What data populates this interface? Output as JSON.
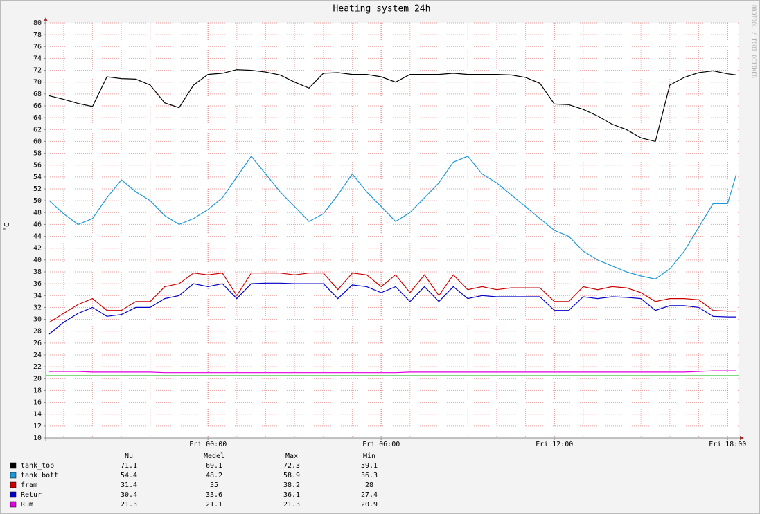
{
  "chart_data": {
    "type": "line",
    "title": "Heating system 24h",
    "y_label": "°C",
    "watermark": "RRDTOOL / TOBI OETIKER",
    "x": [
      -5.5,
      -5,
      -4.5,
      -4,
      -3.5,
      -3,
      -2.5,
      -2,
      -1.5,
      -1,
      -0.5,
      0,
      0.5,
      1,
      1.5,
      2,
      2.5,
      3,
      3.5,
      4,
      4.5,
      5,
      5.5,
      6,
      6.5,
      7,
      7.5,
      8,
      8.5,
      9,
      9.5,
      10,
      10.5,
      11,
      11.5,
      12,
      12.5,
      13,
      13.5,
      14,
      14.5,
      15,
      15.5,
      16,
      16.5,
      17,
      17.5,
      18,
      18.3
    ],
    "xlim": [
      -5.62,
      18.38
    ],
    "xticks": [
      {
        "value": 0,
        "label": "Fri 00:00"
      },
      {
        "value": 6,
        "label": "Fri 06:00"
      },
      {
        "value": 12,
        "label": "Fri 12:00"
      },
      {
        "value": 18,
        "label": "Fri 18:00"
      }
    ],
    "x_minor_ticks": [
      -5,
      -4,
      -3,
      -2,
      -1,
      1,
      2,
      3,
      4,
      5,
      7,
      8,
      9,
      10,
      11,
      13,
      14,
      15,
      16,
      17
    ],
    "ylim": [
      10,
      80
    ],
    "yticks": [
      10,
      12,
      14,
      16,
      18,
      20,
      22,
      24,
      26,
      28,
      30,
      32,
      34,
      36,
      38,
      40,
      42,
      44,
      46,
      48,
      50,
      52,
      54,
      56,
      58,
      60,
      62,
      64,
      66,
      68,
      70,
      72,
      74,
      76,
      78,
      80
    ],
    "grid": true,
    "hrule": {
      "value": 20.5,
      "color": "#00b000"
    },
    "legend_columns": [
      "Nu",
      "Medel",
      "Max",
      "Min"
    ],
    "series": [
      {
        "name": "tank_top",
        "color": "#000000",
        "stats": [
          71.1,
          69.1,
          72.3,
          59.1
        ],
        "values": [
          67.7,
          67.1,
          66.4,
          65.9,
          70.9,
          70.6,
          70.5,
          69.5,
          66.5,
          65.7,
          69.5,
          71.3,
          71.5,
          72.1,
          72.0,
          71.7,
          71.2,
          70.0,
          69.0,
          71.5,
          71.6,
          71.3,
          71.3,
          70.9,
          70.0,
          71.3,
          71.3,
          71.3,
          71.5,
          71.3,
          71.3,
          71.3,
          71.2,
          70.8,
          69.8,
          66.3,
          66.2,
          65.4,
          64.3,
          62.9,
          62.0,
          60.6,
          60.0,
          69.5,
          70.8,
          71.6,
          71.9,
          71.4,
          71.2
        ]
      },
      {
        "name": "tank_bott",
        "color": "#1e98d8",
        "stats": [
          54.4,
          48.2,
          58.9,
          36.3
        ],
        "values": [
          50.0,
          47.8,
          46.0,
          47.0,
          50.5,
          53.5,
          51.5,
          50.0,
          47.5,
          46.0,
          47.0,
          48.5,
          50.5,
          54.0,
          57.5,
          54.5,
          51.5,
          49.0,
          46.5,
          47.8,
          51.0,
          54.5,
          51.5,
          49.0,
          46.5,
          48.0,
          50.5,
          53.0,
          56.5,
          57.5,
          54.5,
          53.0,
          51.0,
          49.0,
          47.0,
          45.0,
          44.0,
          41.5,
          40.0,
          39.0,
          38.0,
          37.3,
          36.8,
          38.5,
          41.5,
          45.5,
          49.5,
          49.5,
          54.4
        ]
      },
      {
        "name": "fram",
        "color": "#cc0000",
        "stats": [
          31.4,
          35.0,
          38.2,
          28.0
        ],
        "values": [
          29.5,
          31.0,
          32.5,
          33.5,
          31.5,
          31.5,
          33.0,
          33.0,
          35.5,
          36.0,
          37.8,
          37.5,
          37.8,
          34.0,
          37.8,
          37.8,
          37.8,
          37.5,
          37.8,
          37.8,
          35.0,
          37.8,
          37.5,
          35.5,
          37.5,
          34.5,
          37.5,
          34.0,
          37.5,
          35.0,
          35.5,
          35.0,
          35.3,
          35.3,
          35.3,
          33.0,
          33.0,
          35.5,
          35.0,
          35.5,
          35.3,
          34.5,
          33.0,
          33.5,
          33.5,
          33.3,
          31.5,
          31.4,
          31.4
        ]
      },
      {
        "name": "Retur",
        "color": "#0000cc",
        "stats": [
          30.4,
          33.6,
          36.1,
          27.4
        ],
        "values": [
          27.5,
          29.5,
          31.0,
          32.0,
          30.5,
          30.8,
          32.0,
          32.0,
          33.5,
          34.0,
          36.0,
          35.5,
          36.0,
          33.5,
          36.0,
          36.1,
          36.1,
          36.0,
          36.0,
          36.0,
          33.5,
          35.8,
          35.5,
          34.5,
          35.5,
          33.0,
          35.5,
          33.0,
          35.5,
          33.5,
          34.0,
          33.8,
          33.8,
          33.8,
          33.8,
          31.5,
          31.5,
          33.8,
          33.5,
          33.8,
          33.7,
          33.5,
          31.5,
          32.3,
          32.3,
          32.0,
          30.5,
          30.4,
          30.4
        ]
      },
      {
        "name": "Rum",
        "color": "#e000e0",
        "stats": [
          21.3,
          21.1,
          21.3,
          20.9
        ],
        "values": [
          21.2,
          21.2,
          21.2,
          21.1,
          21.1,
          21.1,
          21.1,
          21.1,
          21.0,
          21.0,
          21.0,
          21.0,
          21.0,
          21.0,
          21.0,
          21.0,
          21.0,
          21.0,
          21.0,
          21.0,
          21.0,
          21.0,
          21.0,
          21.0,
          21.0,
          21.1,
          21.1,
          21.1,
          21.1,
          21.1,
          21.1,
          21.1,
          21.1,
          21.1,
          21.1,
          21.1,
          21.1,
          21.1,
          21.1,
          21.1,
          21.1,
          21.1,
          21.1,
          21.1,
          21.1,
          21.2,
          21.3,
          21.3,
          21.3
        ]
      }
    ]
  }
}
